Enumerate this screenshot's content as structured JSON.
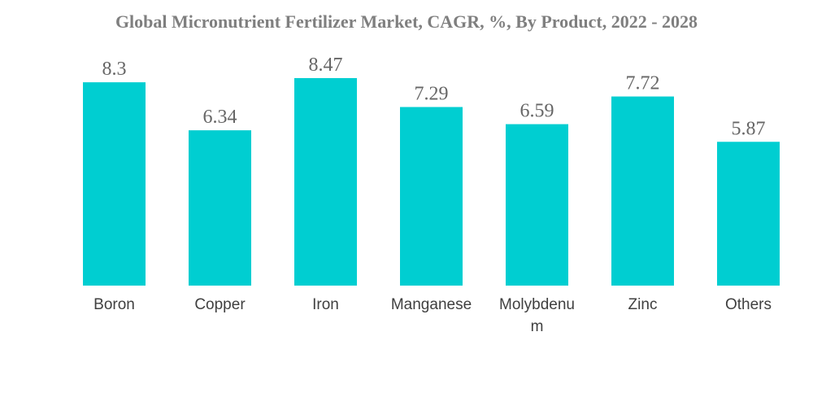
{
  "chart_data": {
    "type": "bar",
    "title": "Global Micronutrient Fertilizer Market, CAGR, %, By Product, 2022 - 2028",
    "categories": [
      "Boron",
      "Copper",
      "Iron",
      "Manganese",
      "Molybdenum",
      "Zinc",
      "Others"
    ],
    "category_display_lines": [
      [
        "Boron"
      ],
      [
        "Copper"
      ],
      [
        "Iron"
      ],
      [
        "Manganese"
      ],
      [
        "Molybdenu",
        "m"
      ],
      [
        "Zinc"
      ],
      [
        "Others"
      ]
    ],
    "values": [
      8.3,
      6.34,
      8.47,
      7.29,
      6.59,
      7.72,
      5.87
    ],
    "value_labels": [
      "8.3",
      "6.34",
      "8.47",
      "7.29",
      "6.59",
      "7.72",
      "5.87"
    ],
    "ylim": [
      0,
      8.47
    ],
    "xlabel": "",
    "ylabel": "",
    "grid": false,
    "legend": "none",
    "bar_color": "#00CED1"
  }
}
